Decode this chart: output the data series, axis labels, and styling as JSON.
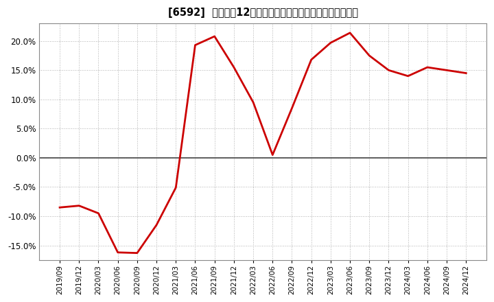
{
  "title": "[6592]  売上高の12か月移動合計の対前年同期増減率の推移",
  "line_color": "#cc0000",
  "background_color": "#ffffff",
  "plot_bg_color": "#ffffff",
  "grid_color": "#b0b0b0",
  "zero_line_color": "#444444",
  "ylim": [
    -0.175,
    0.23
  ],
  "yticks": [
    -0.15,
    -0.1,
    -0.05,
    0.0,
    0.05,
    0.1,
    0.15,
    0.2
  ],
  "dates": [
    "2019/09",
    "2019/12",
    "2020/03",
    "2020/06",
    "2020/09",
    "2020/12",
    "2021/03",
    "2021/06",
    "2021/09",
    "2021/12",
    "2022/03",
    "2022/06",
    "2022/09",
    "2022/12",
    "2023/03",
    "2023/06",
    "2023/09",
    "2023/12",
    "2024/03",
    "2024/06",
    "2024/09",
    "2024/12"
  ],
  "values": [
    -0.085,
    -0.082,
    -0.095,
    -0.162,
    -0.163,
    -0.115,
    -0.051,
    0.193,
    0.208,
    0.155,
    0.095,
    0.005,
    0.085,
    0.168,
    0.197,
    0.214,
    0.175,
    0.15,
    0.14,
    0.155,
    0.15,
    0.145
  ]
}
